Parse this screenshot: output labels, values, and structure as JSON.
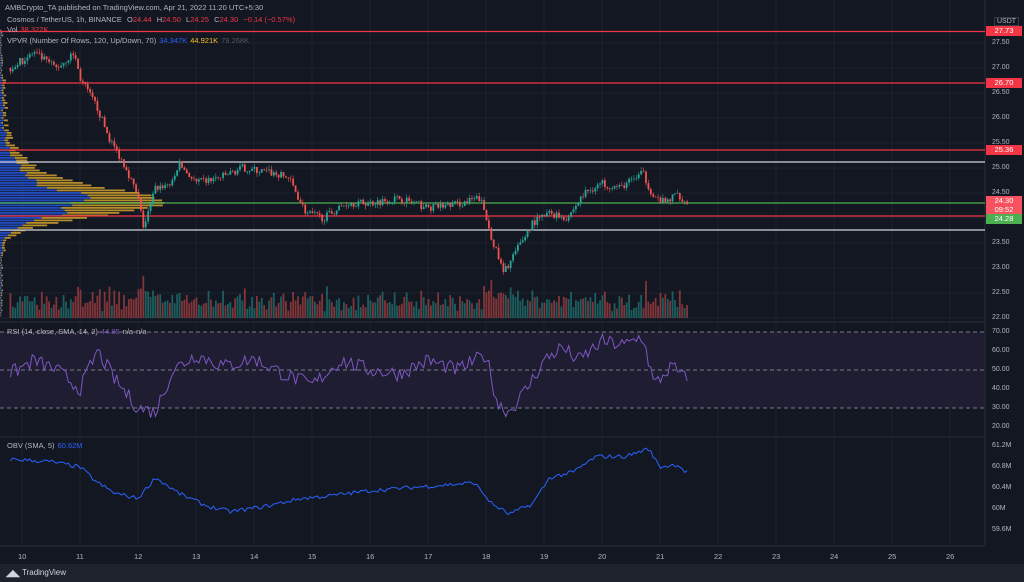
{
  "header": {
    "published": "AMBCrypto_TA published on TradingView.com, Apr 21, 2022 11:20 UTC+5:30"
  },
  "legend": {
    "symbol": "Cosmos / TetherUS, 1h, BINANCE",
    "o_label": "O",
    "o": "24.44",
    "h_label": "H",
    "h": "24.50",
    "l_label": "L",
    "l": "24.25",
    "c_label": "C",
    "c": "24.30",
    "change": "−0.14 (−0.57%)",
    "vol_label": "Vol",
    "vol": "38.322K",
    "vpvr_label": "VPVR (Number Of Rows, 120, Up/Down, 70)",
    "vpvr_up": "34.347K",
    "vpvr_down": "44.921K",
    "vpvr_total": "79.268K",
    "rsi_label": "RSI (14, close, SMA, 14, 2)",
    "rsi_value": "44.85",
    "rsi_na1": "n/a",
    "rsi_na2": "n/a",
    "obv_label": "OBV (SMA, 5)",
    "obv_value": "60.62M"
  },
  "axis": {
    "currency": "USDT",
    "price_ticks": [
      "27.50",
      "27.00",
      "26.50",
      "26.00",
      "25.50",
      "25.00",
      "24.50",
      "23.50",
      "23.00",
      "22.50",
      "22.00"
    ],
    "rsi_ticks": [
      "70.00",
      "60.00",
      "50.00",
      "40.00",
      "30.00",
      "20.00"
    ],
    "obv_ticks": [
      "61.2M",
      "60.8M",
      "60.4M",
      "60M",
      "59.6M"
    ],
    "time_ticks": [
      "10",
      "11",
      "12",
      "13",
      "14",
      "15",
      "16",
      "17",
      "18",
      "19",
      "20",
      "21",
      "22",
      "23",
      "24",
      "25",
      "26"
    ]
  },
  "price_labels": {
    "l1": "27.73",
    "l2": "26.70",
    "l3": "25.36",
    "last": "24.30",
    "countdown": "09:52",
    "l4": "24.28"
  },
  "footer": {
    "brand": "TradingView"
  },
  "colors": {
    "up": "#26a69a",
    "down": "#ef5350",
    "red_line": "#f23645",
    "green": "#4caf50",
    "rsi": "#7e57c2",
    "obv": "#2962ff"
  },
  "chart_data": {
    "type": "candlestick",
    "title": "Cosmos / TetherUS, 1h, BINANCE",
    "x_unit": "day of April 2022",
    "price_path": [
      [
        9.8,
        27.0
      ],
      [
        10.2,
        27.3
      ],
      [
        10.6,
        27.0
      ],
      [
        10.9,
        27.3
      ],
      [
        11.0,
        26.8
      ],
      [
        11.3,
        26.2
      ],
      [
        11.5,
        25.6
      ],
      [
        11.8,
        25.0
      ],
      [
        12.0,
        24.4
      ],
      [
        12.1,
        23.8
      ],
      [
        12.3,
        24.6
      ],
      [
        12.6,
        24.7
      ],
      [
        12.7,
        25.1
      ],
      [
        13.0,
        24.7
      ],
      [
        13.4,
        24.8
      ],
      [
        13.8,
        25.0
      ],
      [
        14.3,
        24.9
      ],
      [
        14.6,
        24.8
      ],
      [
        14.9,
        24.1
      ],
      [
        15.2,
        24.0
      ],
      [
        15.6,
        24.3
      ],
      [
        16.0,
        24.3
      ],
      [
        16.5,
        24.4
      ],
      [
        17.0,
        24.2
      ],
      [
        17.6,
        24.3
      ],
      [
        17.9,
        24.4
      ],
      [
        18.1,
        23.6
      ],
      [
        18.3,
        22.9
      ],
      [
        18.5,
        23.3
      ],
      [
        18.8,
        23.9
      ],
      [
        19.1,
        24.1
      ],
      [
        19.4,
        24.0
      ],
      [
        19.7,
        24.5
      ],
      [
        20.0,
        24.7
      ],
      [
        20.3,
        24.6
      ],
      [
        20.7,
        24.9
      ],
      [
        20.9,
        24.4
      ],
      [
        21.1,
        24.3
      ],
      [
        21.3,
        24.5
      ],
      [
        21.45,
        24.3
      ]
    ],
    "levels": [
      {
        "price": 27.73,
        "color": "red"
      },
      {
        "price": 26.7,
        "color": "red"
      },
      {
        "price": 25.36,
        "color": "red"
      },
      {
        "price": 25.12,
        "color": "white"
      },
      {
        "price": 24.3,
        "color": "green"
      },
      {
        "price": 24.04,
        "color": "red"
      },
      {
        "price": 23.76,
        "color": "white"
      }
    ],
    "rsi_path": [
      [
        9.8,
        48
      ],
      [
        10.2,
        55
      ],
      [
        10.6,
        50
      ],
      [
        11.0,
        40
      ],
      [
        11.3,
        60
      ],
      [
        11.6,
        45
      ],
      [
        12.0,
        30
      ],
      [
        12.3,
        28
      ],
      [
        12.6,
        50
      ],
      [
        13.0,
        58
      ],
      [
        13.5,
        52
      ],
      [
        14.0,
        56
      ],
      [
        14.5,
        48
      ],
      [
        15.0,
        42
      ],
      [
        15.5,
        55
      ],
      [
        16.0,
        50
      ],
      [
        16.5,
        48
      ],
      [
        17.0,
        55
      ],
      [
        17.5,
        50
      ],
      [
        18.0,
        58
      ],
      [
        18.2,
        32
      ],
      [
        18.4,
        28
      ],
      [
        18.7,
        40
      ],
      [
        19.0,
        55
      ],
      [
        19.3,
        62
      ],
      [
        19.6,
        55
      ],
      [
        20.0,
        65
      ],
      [
        20.4,
        63
      ],
      [
        20.7,
        68
      ],
      [
        20.9,
        42
      ],
      [
        21.2,
        52
      ],
      [
        21.45,
        45
      ]
    ],
    "obv_path": [
      [
        9.8,
        60.95
      ],
      [
        10.5,
        60.9
      ],
      [
        11.0,
        60.8
      ],
      [
        11.3,
        60.5
      ],
      [
        11.6,
        60.3
      ],
      [
        12.0,
        60.2
      ],
      [
        12.3,
        60.6
      ],
      [
        12.7,
        60.3
      ],
      [
        13.2,
        60.05
      ],
      [
        13.6,
        59.95
      ],
      [
        14.2,
        60.05
      ],
      [
        14.8,
        60.2
      ],
      [
        15.3,
        60.25
      ],
      [
        16.0,
        60.35
      ],
      [
        16.6,
        60.4
      ],
      [
        17.2,
        60.45
      ],
      [
        17.8,
        60.5
      ],
      [
        18.1,
        60.1
      ],
      [
        18.4,
        59.9
      ],
      [
        18.8,
        60.1
      ],
      [
        19.1,
        60.6
      ],
      [
        19.5,
        60.7
      ],
      [
        19.9,
        61.0
      ],
      [
        20.4,
        61.0
      ],
      [
        20.8,
        61.15
      ],
      [
        21.0,
        60.8
      ],
      [
        21.3,
        60.85
      ],
      [
        21.45,
        60.7
      ]
    ],
    "price_range": [
      22.0,
      27.9
    ],
    "rsi_range": [
      20,
      70
    ],
    "obv_range": [
      59.5,
      61.35
    ],
    "x_range": [
      9.8,
      26.3
    ]
  }
}
